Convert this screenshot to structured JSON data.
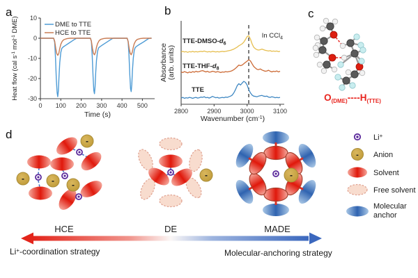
{
  "panels": {
    "a": "a",
    "b": "b",
    "c": "c",
    "d": "d"
  },
  "chart_data": [
    {
      "id": "itc-thermogram",
      "type": "line",
      "xlabel": "Time (s)",
      "ylabel": "Heat flow (cal s⁻¹ mol⁻¹ DME)",
      "xlim": [
        0,
        560
      ],
      "ylim": [
        -30,
        10
      ],
      "xticks": [
        0,
        100,
        200,
        300,
        400,
        500
      ],
      "yticks": [
        10,
        0,
        -10,
        -20,
        -30
      ],
      "legend_position": "top-left",
      "grid": false,
      "series": [
        {
          "name": "DME to TTE",
          "color": "#4D9BD5",
          "points": [
            [
              0,
              0
            ],
            [
              65,
              0
            ],
            [
              70,
              -2
            ],
            [
              74,
              -10
            ],
            [
              78,
              -20
            ],
            [
              82,
              -27
            ],
            [
              85,
              -29
            ],
            [
              88,
              -26
            ],
            [
              91,
              -19
            ],
            [
              95,
              -12
            ],
            [
              100,
              -7
            ],
            [
              105,
              -5
            ],
            [
              112,
              -4.3
            ],
            [
              125,
              -3.4
            ],
            [
              140,
              -2.4
            ],
            [
              155,
              -1.4
            ],
            [
              170,
              -0.4
            ],
            [
              178,
              0
            ],
            [
              245,
              0
            ],
            [
              250,
              -1.5
            ],
            [
              254,
              -9
            ],
            [
              258,
              -19
            ],
            [
              262,
              -26
            ],
            [
              265,
              -27.5
            ],
            [
              268,
              -24
            ],
            [
              271,
              -17
            ],
            [
              275,
              -11
            ],
            [
              280,
              -6.5
            ],
            [
              285,
              -4.8
            ],
            [
              292,
              -4.2
            ],
            [
              305,
              -3.3
            ],
            [
              320,
              -2.3
            ],
            [
              335,
              -1.3
            ],
            [
              350,
              -0.3
            ],
            [
              358,
              0
            ],
            [
              425,
              0
            ],
            [
              430,
              -1.5
            ],
            [
              434,
              -8
            ],
            [
              438,
              -18
            ],
            [
              442,
              -25
            ],
            [
              445,
              -26.5
            ],
            [
              448,
              -23
            ],
            [
              451,
              -16
            ],
            [
              455,
              -10
            ],
            [
              460,
              -6
            ],
            [
              465,
              -4.6
            ],
            [
              472,
              -4
            ],
            [
              485,
              -3.1
            ],
            [
              500,
              -2.2
            ],
            [
              515,
              -1.2
            ],
            [
              530,
              -0.2
            ],
            [
              538,
              0
            ],
            [
              545,
              0
            ]
          ]
        },
        {
          "name": "HCE to TTE",
          "color": "#C87C54",
          "points": [
            [
              0,
              0
            ],
            [
              65,
              0
            ],
            [
              70,
              -1.5
            ],
            [
              75,
              -5
            ],
            [
              80,
              -7.5
            ],
            [
              85,
              -8.5
            ],
            [
              90,
              -7.5
            ],
            [
              95,
              -5
            ],
            [
              100,
              -3
            ],
            [
              107,
              -1.5
            ],
            [
              115,
              -0.7
            ],
            [
              130,
              -0.2
            ],
            [
              145,
              0
            ],
            [
              245,
              0
            ],
            [
              250,
              -1.5
            ],
            [
              255,
              -5
            ],
            [
              260,
              -7.5
            ],
            [
              265,
              -8.2
            ],
            [
              270,
              -7
            ],
            [
              275,
              -4.5
            ],
            [
              280,
              -2.7
            ],
            [
              287,
              -1.3
            ],
            [
              295,
              -0.6
            ],
            [
              310,
              -0.15
            ],
            [
              325,
              0
            ],
            [
              425,
              0
            ],
            [
              430,
              -1.5
            ],
            [
              435,
              -5
            ],
            [
              440,
              -7.5
            ],
            [
              445,
              -8.2
            ],
            [
              450,
              -7
            ],
            [
              455,
              -4.5
            ],
            [
              460,
              -2.7
            ],
            [
              467,
              -1.3
            ],
            [
              475,
              -0.6
            ],
            [
              490,
              -0.15
            ],
            [
              505,
              0
            ],
            [
              545,
              0
            ]
          ]
        }
      ]
    },
    {
      "id": "ir-spectra",
      "type": "line",
      "xlabel": "Wavenumber (cm⁻¹)",
      "ylabel": "Absorbance (arb. units)",
      "xlim": [
        2800,
        3100
      ],
      "xticks": [
        2800,
        2900,
        3000,
        3100
      ],
      "dashed_line_x": 3005,
      "annotation": "In CCl₄",
      "x_start": 2800,
      "x_step": 5,
      "series": [
        {
          "name": "TTE",
          "color": "#3E87C2",
          "offset": 0.15,
          "values": [
            0.04,
            0.06,
            0.03,
            0.05,
            0.04,
            0.06,
            0.05,
            0.03,
            0.05,
            0.06,
            0.04,
            0.05,
            0.07,
            0.06,
            0.08,
            0.05,
            0.06,
            0.04,
            0.06,
            0.09,
            0.07,
            0.05,
            0.06,
            0.04,
            0.05,
            0.06,
            0.05,
            0.07,
            0.06,
            0.08,
            0.1,
            0.13,
            0.2,
            0.3,
            0.42,
            0.48,
            0.44,
            0.5,
            0.55,
            0.52,
            0.44,
            0.3,
            0.2,
            0.13,
            0.1,
            0.09,
            0.08,
            0.1,
            0.11,
            0.12,
            0.1,
            0.09,
            0.1,
            0.07,
            0.06,
            0.08,
            0.07,
            0.05,
            0.06,
            0.05,
            0.06
          ]
        },
        {
          "name": "TTE-THF-d8",
          "color": "#CC6A35",
          "offset": 0.91,
          "values": [
            0.08,
            0.06,
            0.09,
            0.07,
            0.05,
            0.08,
            0.06,
            0.09,
            0.07,
            0.1,
            0.08,
            0.09,
            0.11,
            0.12,
            0.1,
            0.08,
            0.1,
            0.07,
            0.08,
            0.1,
            0.09,
            0.07,
            0.09,
            0.08,
            0.06,
            0.08,
            0.07,
            0.09,
            0.08,
            0.09,
            0.1,
            0.12,
            0.15,
            0.19,
            0.24,
            0.29,
            0.27,
            0.29,
            0.33,
            0.37,
            0.41,
            0.45,
            0.42,
            0.33,
            0.25,
            0.2,
            0.16,
            0.15,
            0.17,
            0.14,
            0.12,
            0.1,
            0.11,
            0.13,
            0.1,
            0.08,
            0.1,
            0.09,
            0.11,
            0.08,
            0.1
          ]
        },
        {
          "name": "TTE-DMSO-d6",
          "color": "#E6BE4F",
          "offset": 1.55,
          "values": [
            0.05,
            0.07,
            0.05,
            0.06,
            0.04,
            0.06,
            0.05,
            0.07,
            0.05,
            0.06,
            0.05,
            0.06,
            0.07,
            0.06,
            0.08,
            0.06,
            0.05,
            0.06,
            0.05,
            0.07,
            0.06,
            0.05,
            0.06,
            0.05,
            0.06,
            0.07,
            0.06,
            0.07,
            0.08,
            0.09,
            0.1,
            0.12,
            0.14,
            0.17,
            0.2,
            0.24,
            0.27,
            0.3,
            0.35,
            0.43,
            0.52,
            0.55,
            0.45,
            0.3,
            0.2,
            0.15,
            0.12,
            0.11,
            0.12,
            0.14,
            0.12,
            0.1,
            0.09,
            0.08,
            0.09,
            0.07,
            0.08,
            0.07,
            0.08,
            0.06,
            0.07
          ]
        }
      ]
    }
  ],
  "labels": {
    "a_xlabel": "Time (s)",
    "a_ylabel_pre": "Heat flow (cal s",
    "a_ylabel_sup1": "-1",
    "a_ylabel_mid": " mol",
    "a_ylabel_sup2": "-1",
    "a_ylabel_post": " DME)",
    "b_ylabel_1": "Absorbance",
    "b_ylabel_2": "(arb. units)",
    "b_xlabel_pre": "Wavenumber (cm",
    "b_xlabel_sup": "-1",
    "b_xlabel_post": ")",
    "b_dmso_base": "TTE-DMSO-",
    "b_dmso_it": "d",
    "b_dmso_sub": "6",
    "b_thf_base": "TTE-THF-",
    "b_thf_it": "d",
    "b_thf_sub": "8",
    "b_tte": "TTE",
    "b_ann_base": "In CCl",
    "b_ann_sub": "4"
  },
  "panel_c": {
    "label": {
      "o": "O",
      "o_sub": "(DME)",
      "dashes": "----",
      "h": "H",
      "h_sub": "(TTE)"
    },
    "atom_colors": {
      "carbon": "#5A5A5A",
      "hydrogen": "#F2F2F2",
      "oxygen": "#DD1E10",
      "fluorine": "#C9EDEF"
    }
  },
  "panel_d": {
    "clusters": [
      {
        "label": "HCE"
      },
      {
        "label": "DE"
      },
      {
        "label": "MADE"
      }
    ],
    "left_strategy": {
      "pre": "Li",
      "sup": "+",
      "post": "-coordination strategy"
    },
    "right_strategy": "Molecular-anchoring strategy",
    "anion_charge": "-",
    "legend": [
      {
        "name": "lithium",
        "base": "Li",
        "sup": "+"
      },
      {
        "name": "anion",
        "label": "Anion"
      },
      {
        "name": "solvent",
        "label": "Solvent"
      },
      {
        "name": "free-solvent",
        "label": "Free solvent"
      },
      {
        "name": "molecular-anchor",
        "line1": "Molecular",
        "line2": "anchor"
      }
    ],
    "colors": {
      "solvent": "#E0180B",
      "solvent_edge": "#F5A79B",
      "solvent_stroke": "#A8402E",
      "anchor": "#2F63B0",
      "anchor_edge": "#A9C7E6",
      "anion": "#C8A33E",
      "anion_stroke": "#A98C37",
      "lithium": "#5B2A9B",
      "free_solvent": "#F8DCCE",
      "free_solvent_stroke": "#DFA08E",
      "connector_blue": "#4472C4",
      "connector_red": "#D93025",
      "arrow_red": "#E3251B",
      "arrow_blue": "#3B68BE"
    }
  }
}
